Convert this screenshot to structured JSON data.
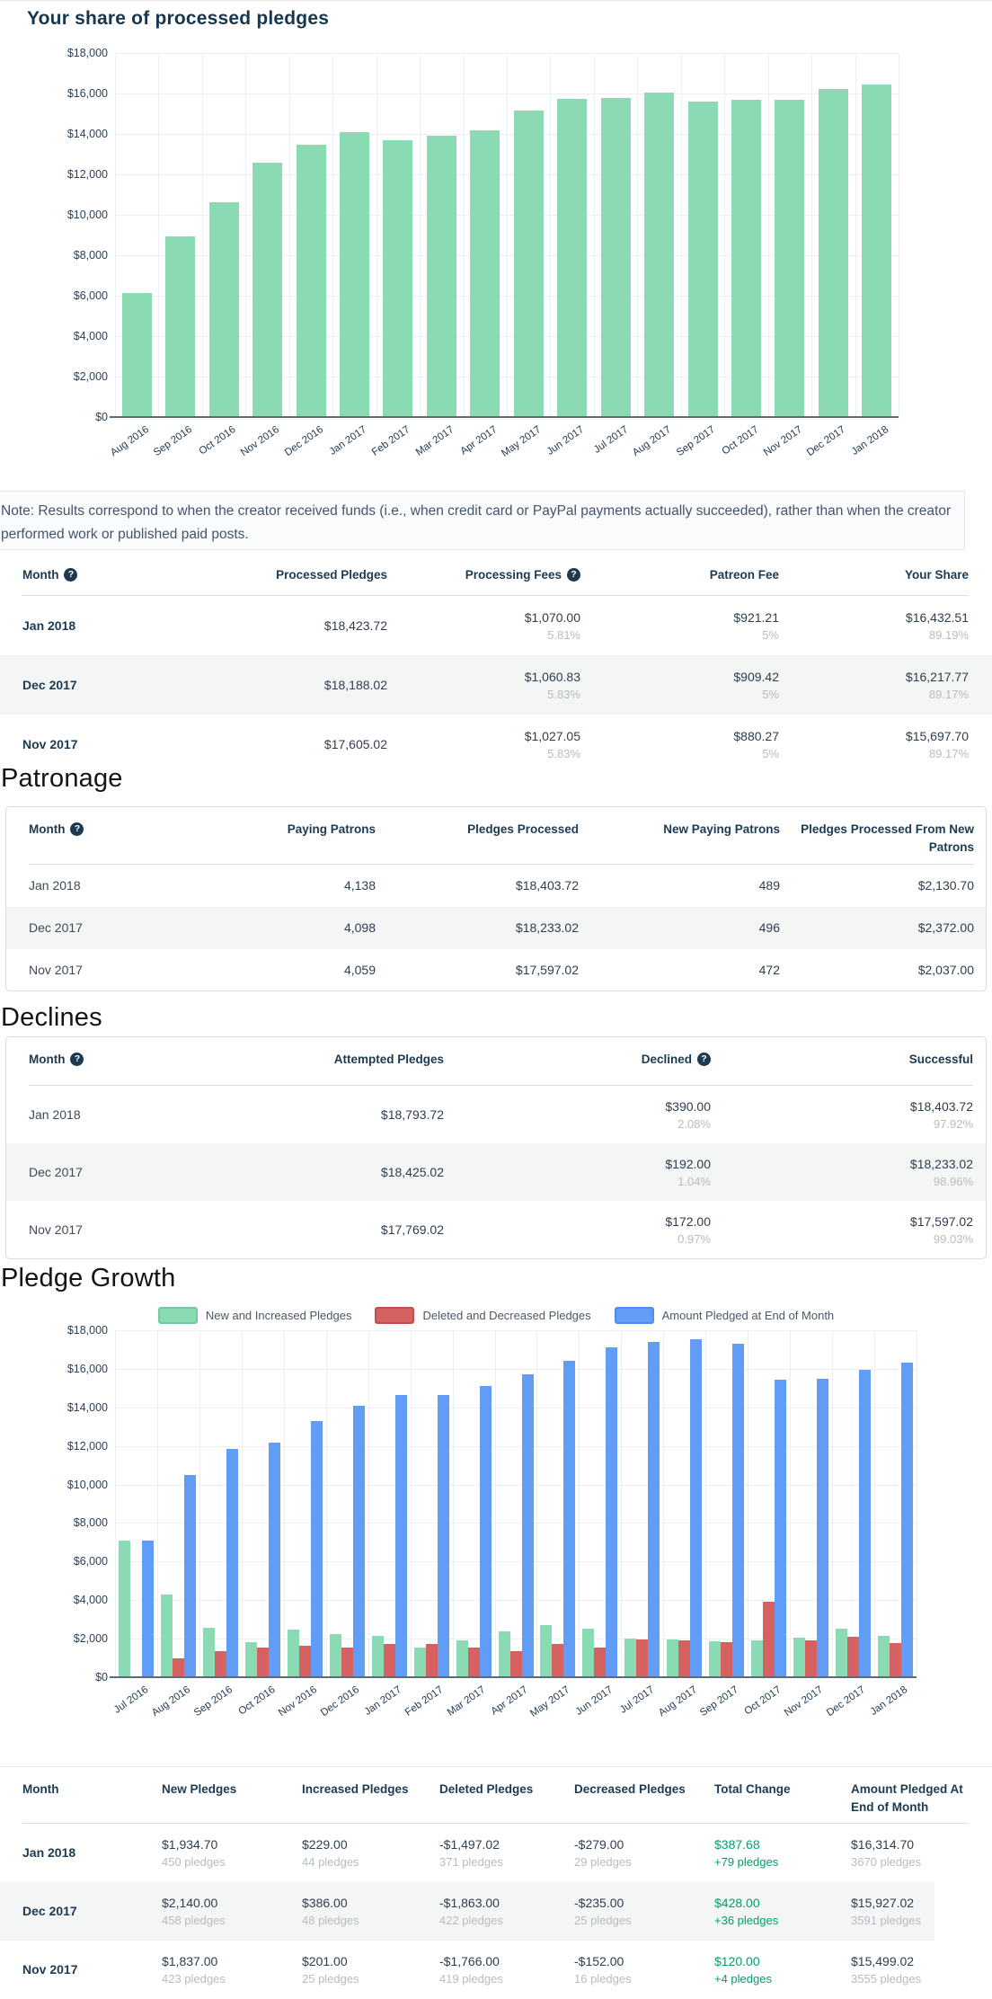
{
  "page": {
    "share_chart_title": "Your share of processed pledges",
    "note": "Note: Results correspond to when the creator received funds (i.e., when credit card or PayPal payments actually succeeded), rather than when the creator performed work or published paid posts.",
    "patronage_heading": "Patronage",
    "declines_heading": "Declines",
    "pledge_growth_heading": "Pledge Growth"
  },
  "colors": {
    "bar_green": "#8ADBB4",
    "bar_red": "#D66161",
    "bar_blue": "#619CF6",
    "navy": "#1D3A53",
    "accent_green": "#00A06E",
    "sub_gray": "#B7BCC1",
    "row_stripe": "#F4F5F5"
  },
  "chart_data": [
    {
      "type": "bar",
      "title": "Your share of processed pledges",
      "xlabel": "",
      "ylabel": "",
      "ylim": [
        0,
        18000
      ],
      "ytick_step": 2000,
      "grid": true,
      "legend_position": "none",
      "bar_color": "#8ADBB4",
      "categories": [
        "Aug 2016",
        "Sep 2016",
        "Oct 2016",
        "Nov 2016",
        "Dec 2016",
        "Jan 2017",
        "Feb 2017",
        "Mar 2017",
        "Apr 2017",
        "May 2017",
        "Jun 2017",
        "Jul 2017",
        "Aug 2017",
        "Sep 2017",
        "Oct 2017",
        "Nov 2017",
        "Dec 2017",
        "Jan 2018"
      ],
      "values": [
        6150,
        8930,
        10615,
        12600,
        13470,
        14100,
        13690,
        13930,
        14190,
        15170,
        15750,
        15800,
        16030,
        15600,
        15700,
        15697.7,
        16217.77,
        16432.51
      ]
    },
    {
      "type": "bar",
      "grouped": true,
      "title": "Pledge Growth",
      "xlabel": "",
      "ylabel": "",
      "ylim": [
        0,
        18000
      ],
      "ytick_step": 2000,
      "grid": true,
      "legend_position": "top",
      "categories": [
        "Jul 2016",
        "Aug 2016",
        "Sep 2016",
        "Oct 2016",
        "Nov 2016",
        "Dec 2016",
        "Jan 2017",
        "Feb 2017",
        "Mar 2017",
        "Apr 2017",
        "May 2017",
        "Jun 2017",
        "Jul 2017",
        "Aug 2017",
        "Sep 2017",
        "Oct 2017",
        "Nov 2017",
        "Dec 2017",
        "Jan 2018"
      ],
      "series": [
        {
          "name": "New and Increased Pledges",
          "color": "#8ADBB4",
          "border": "#74C9A1",
          "values": [
            7100,
            4300,
            2550,
            1800,
            2450,
            2250,
            2150,
            1550,
            1900,
            2400,
            2700,
            2500,
            2000,
            1950,
            1850,
            1900,
            2038,
            2526,
            2163.7
          ]
        },
        {
          "name": "Deleted and Decreased Pledges",
          "color": "#D66161",
          "border": "#C14F4F",
          "values": [
            0,
            1000,
            1330,
            1530,
            1610,
            1530,
            1730,
            1730,
            1530,
            1360,
            1730,
            1520,
            1950,
            1920,
            1800,
            3900,
            1918,
            2098,
            1776.02
          ]
        },
        {
          "name": "Amount Pledged at End of Month",
          "color": "#619CF6",
          "border": "#4D8DF3",
          "values": [
            7100,
            10500,
            11850,
            12150,
            13300,
            14100,
            14650,
            14650,
            15100,
            15700,
            16400,
            17100,
            17400,
            17550,
            17300,
            15450,
            15499.02,
            15927.02,
            16314.7
          ]
        }
      ]
    }
  ],
  "tables": {
    "share": {
      "headers": [
        {
          "label": "Month",
          "help": true
        },
        {
          "label": "Processed Pledges"
        },
        {
          "label": "Processing Fees",
          "help": true
        },
        {
          "label": "Patreon Fee"
        },
        {
          "label": "Your Share"
        }
      ],
      "month_bold": true,
      "rows": [
        {
          "month": "Jan 2018",
          "cells": [
            {
              "main": "$18,423.72"
            },
            {
              "main": "$1,070.00",
              "sub": "5.81%"
            },
            {
              "main": "$921.21",
              "sub": "5%"
            },
            {
              "main": "$16,432.51",
              "sub": "89.19%"
            }
          ]
        },
        {
          "month": "Dec 2017",
          "cells": [
            {
              "main": "$18,188.02"
            },
            {
              "main": "$1,060.83",
              "sub": "5.83%"
            },
            {
              "main": "$909.42",
              "sub": "5%"
            },
            {
              "main": "$16,217.77",
              "sub": "89.17%"
            }
          ]
        },
        {
          "month": "Nov 2017",
          "cells": [
            {
              "main": "$17,605.02"
            },
            {
              "main": "$1,027.05",
              "sub": "5.83%"
            },
            {
              "main": "$880.27",
              "sub": "5%"
            },
            {
              "main": "$15,697.70",
              "sub": "89.17%"
            }
          ]
        }
      ]
    },
    "patronage": {
      "headers": [
        {
          "label": "Month",
          "help": true
        },
        {
          "label": "Paying Patrons"
        },
        {
          "label": "Pledges Processed"
        },
        {
          "label": "New Paying Patrons"
        },
        {
          "label": "Pledges Processed From New Patrons"
        }
      ],
      "month_bold": false,
      "rows": [
        {
          "month": "Jan 2018",
          "cells": [
            {
              "main": "4,138"
            },
            {
              "main": "$18,403.72"
            },
            {
              "main": "489"
            },
            {
              "main": "$2,130.70"
            }
          ]
        },
        {
          "month": "Dec 2017",
          "cells": [
            {
              "main": "4,098"
            },
            {
              "main": "$18,233.02"
            },
            {
              "main": "496"
            },
            {
              "main": "$2,372.00"
            }
          ]
        },
        {
          "month": "Nov 2017",
          "cells": [
            {
              "main": "4,059"
            },
            {
              "main": "$17,597.02"
            },
            {
              "main": "472"
            },
            {
              "main": "$2,037.00"
            }
          ]
        }
      ]
    },
    "declines": {
      "headers": [
        {
          "label": "Month",
          "help": true
        },
        {
          "label": "Attempted Pledges"
        },
        {
          "label": "Declined",
          "help": true
        },
        {
          "label": "Successful"
        }
      ],
      "month_bold": false,
      "rows": [
        {
          "month": "Jan 2018",
          "cells": [
            {
              "main": "$18,793.72"
            },
            {
              "main": "$390.00",
              "sub": "2.08%"
            },
            {
              "main": "$18,403.72",
              "sub": "97.92%"
            }
          ]
        },
        {
          "month": "Dec 2017",
          "cells": [
            {
              "main": "$18,425.02"
            },
            {
              "main": "$192.00",
              "sub": "1.04%"
            },
            {
              "main": "$18,233.02",
              "sub": "98.96%"
            }
          ]
        },
        {
          "month": "Nov 2017",
          "cells": [
            {
              "main": "$17,769.02"
            },
            {
              "main": "$172.00",
              "sub": "0.97%"
            },
            {
              "main": "$17,597.02",
              "sub": "99.03%"
            }
          ]
        }
      ]
    },
    "growth": {
      "headers": [
        {
          "label": "Month"
        },
        {
          "label": "New Pledges"
        },
        {
          "label": "Increased Pledges"
        },
        {
          "label": "Deleted Pledges"
        },
        {
          "label": "Decreased Pledges"
        },
        {
          "label": "Total Change"
        },
        {
          "label": "Amount Pledged At End of Month"
        }
      ],
      "month_bold": true,
      "rows": [
        {
          "month": "Jan 2018",
          "cells": [
            {
              "main": "$1,934.70",
              "sub": "450 pledges"
            },
            {
              "main": "$229.00",
              "sub": "44 pledges"
            },
            {
              "main": "-$1,497.02",
              "sub": "371 pledges"
            },
            {
              "main": "-$279.00",
              "sub": "29 pledges"
            },
            {
              "main": "$387.68",
              "sub": "+79 pledges",
              "accent": true
            },
            {
              "main": "$16,314.70",
              "sub": "3670 pledges"
            }
          ]
        },
        {
          "month": "Dec 2017",
          "cells": [
            {
              "main": "$2,140.00",
              "sub": "458 pledges"
            },
            {
              "main": "$386.00",
              "sub": "48 pledges"
            },
            {
              "main": "-$1,863.00",
              "sub": "422 pledges"
            },
            {
              "main": "-$235.00",
              "sub": "25 pledges"
            },
            {
              "main": "$428.00",
              "sub": "+36 pledges",
              "accent": true
            },
            {
              "main": "$15,927.02",
              "sub": "3591 pledges"
            }
          ]
        },
        {
          "month": "Nov 2017",
          "cells": [
            {
              "main": "$1,837.00",
              "sub": "423 pledges"
            },
            {
              "main": "$201.00",
              "sub": "25 pledges"
            },
            {
              "main": "-$1,766.00",
              "sub": "419 pledges"
            },
            {
              "main": "-$152.00",
              "sub": "16 pledges"
            },
            {
              "main": "$120.00",
              "sub": "+4 pledges",
              "accent": true
            },
            {
              "main": "$15,499.02",
              "sub": "3555 pledges"
            }
          ]
        }
      ]
    }
  }
}
